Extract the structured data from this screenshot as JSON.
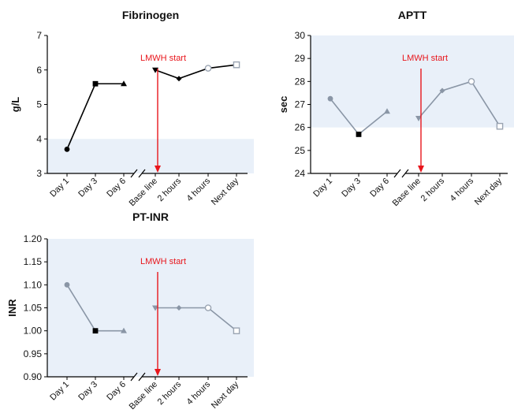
{
  "chart_data": [
    {
      "type": "line",
      "title": "Fibrinogen",
      "ylabel": "g/L",
      "xlabel": "",
      "ylim": [
        3,
        7
      ],
      "yticks": [
        "3",
        "4",
        "5",
        "6",
        "7"
      ],
      "categories": [
        "Day 1",
        "Day 3",
        "Day 6",
        "Base line",
        "2 hours",
        "4 hours",
        "Next day"
      ],
      "reference_range": [
        3,
        4
      ],
      "segments": [
        {
          "x": [
            "Day 1",
            "Day 3",
            "Day 6"
          ],
          "y": [
            3.7,
            5.6,
            5.6
          ],
          "markers": [
            "circle",
            "square",
            "triangle"
          ],
          "color": "#000000"
        },
        {
          "x": [
            "Base line",
            "2 hours",
            "4 hours",
            "Next day"
          ],
          "y": [
            6.0,
            5.75,
            6.05,
            6.15
          ],
          "markers": [
            "triangle-down",
            "diamond",
            "circle-open",
            "square-open"
          ],
          "color": "#000000"
        }
      ],
      "annotation": {
        "text": "LMWH start",
        "at": "Base line",
        "color": "#e8161c"
      },
      "axis_break": "between Day 6 and Base line"
    },
    {
      "type": "line",
      "title": "APTT",
      "ylabel": "sec",
      "xlabel": "",
      "ylim": [
        24,
        30
      ],
      "yticks": [
        "24",
        "25",
        "26",
        "27",
        "28",
        "29",
        "30"
      ],
      "categories": [
        "Day 1",
        "Day 3",
        "Day 6",
        "Base line",
        "2 hours",
        "4 hours",
        "Next day"
      ],
      "reference_range": [
        26,
        30
      ],
      "segments": [
        {
          "x": [
            "Day 1",
            "Day 3",
            "Day 6"
          ],
          "y": [
            27.25,
            25.7,
            26.7
          ],
          "markers": [
            "circle",
            "square",
            "triangle"
          ],
          "color": "#8a96a6"
        },
        {
          "x": [
            "Base line",
            "2 hours",
            "4 hours",
            "Next day"
          ],
          "y": [
            26.4,
            27.6,
            28.0,
            26.05
          ],
          "markers": [
            "triangle-down",
            "diamond",
            "circle-open",
            "square-open"
          ],
          "color": "#8a96a6"
        }
      ],
      "annotation": {
        "text": "LMWH start",
        "at": "Base line",
        "color": "#e8161c"
      },
      "axis_break": "between Day 6 and Base line"
    },
    {
      "type": "line",
      "title": "PT-INR",
      "ylabel": "INR",
      "xlabel": "",
      "ylim": [
        0.9,
        1.2
      ],
      "yticks": [
        "0.90",
        "0.95",
        "1.00",
        "1.05",
        "1.10",
        "1.15",
        "1.20"
      ],
      "categories": [
        "Day 1",
        "Day 3",
        "Day 6",
        "Base line",
        "2 hours",
        "4 hours",
        "Next day"
      ],
      "reference_range": [
        0.9,
        1.2
      ],
      "segments": [
        {
          "x": [
            "Day 1",
            "Day 3",
            "Day 6"
          ],
          "y": [
            1.1,
            1.0,
            1.0
          ],
          "markers": [
            "circle",
            "square",
            "triangle"
          ],
          "color": "#8a96a6"
        },
        {
          "x": [
            "Base line",
            "2 hours",
            "4 hours",
            "Next day"
          ],
          "y": [
            1.05,
            1.05,
            1.05,
            1.0
          ],
          "markers": [
            "triangle-down",
            "diamond",
            "circle-open",
            "square-open"
          ],
          "color": "#8a96a6"
        }
      ],
      "annotation": {
        "text": "LMWH start",
        "at": "Base line",
        "color": "#e8161c"
      },
      "axis_break": "between Day 6 and Base line"
    }
  ]
}
